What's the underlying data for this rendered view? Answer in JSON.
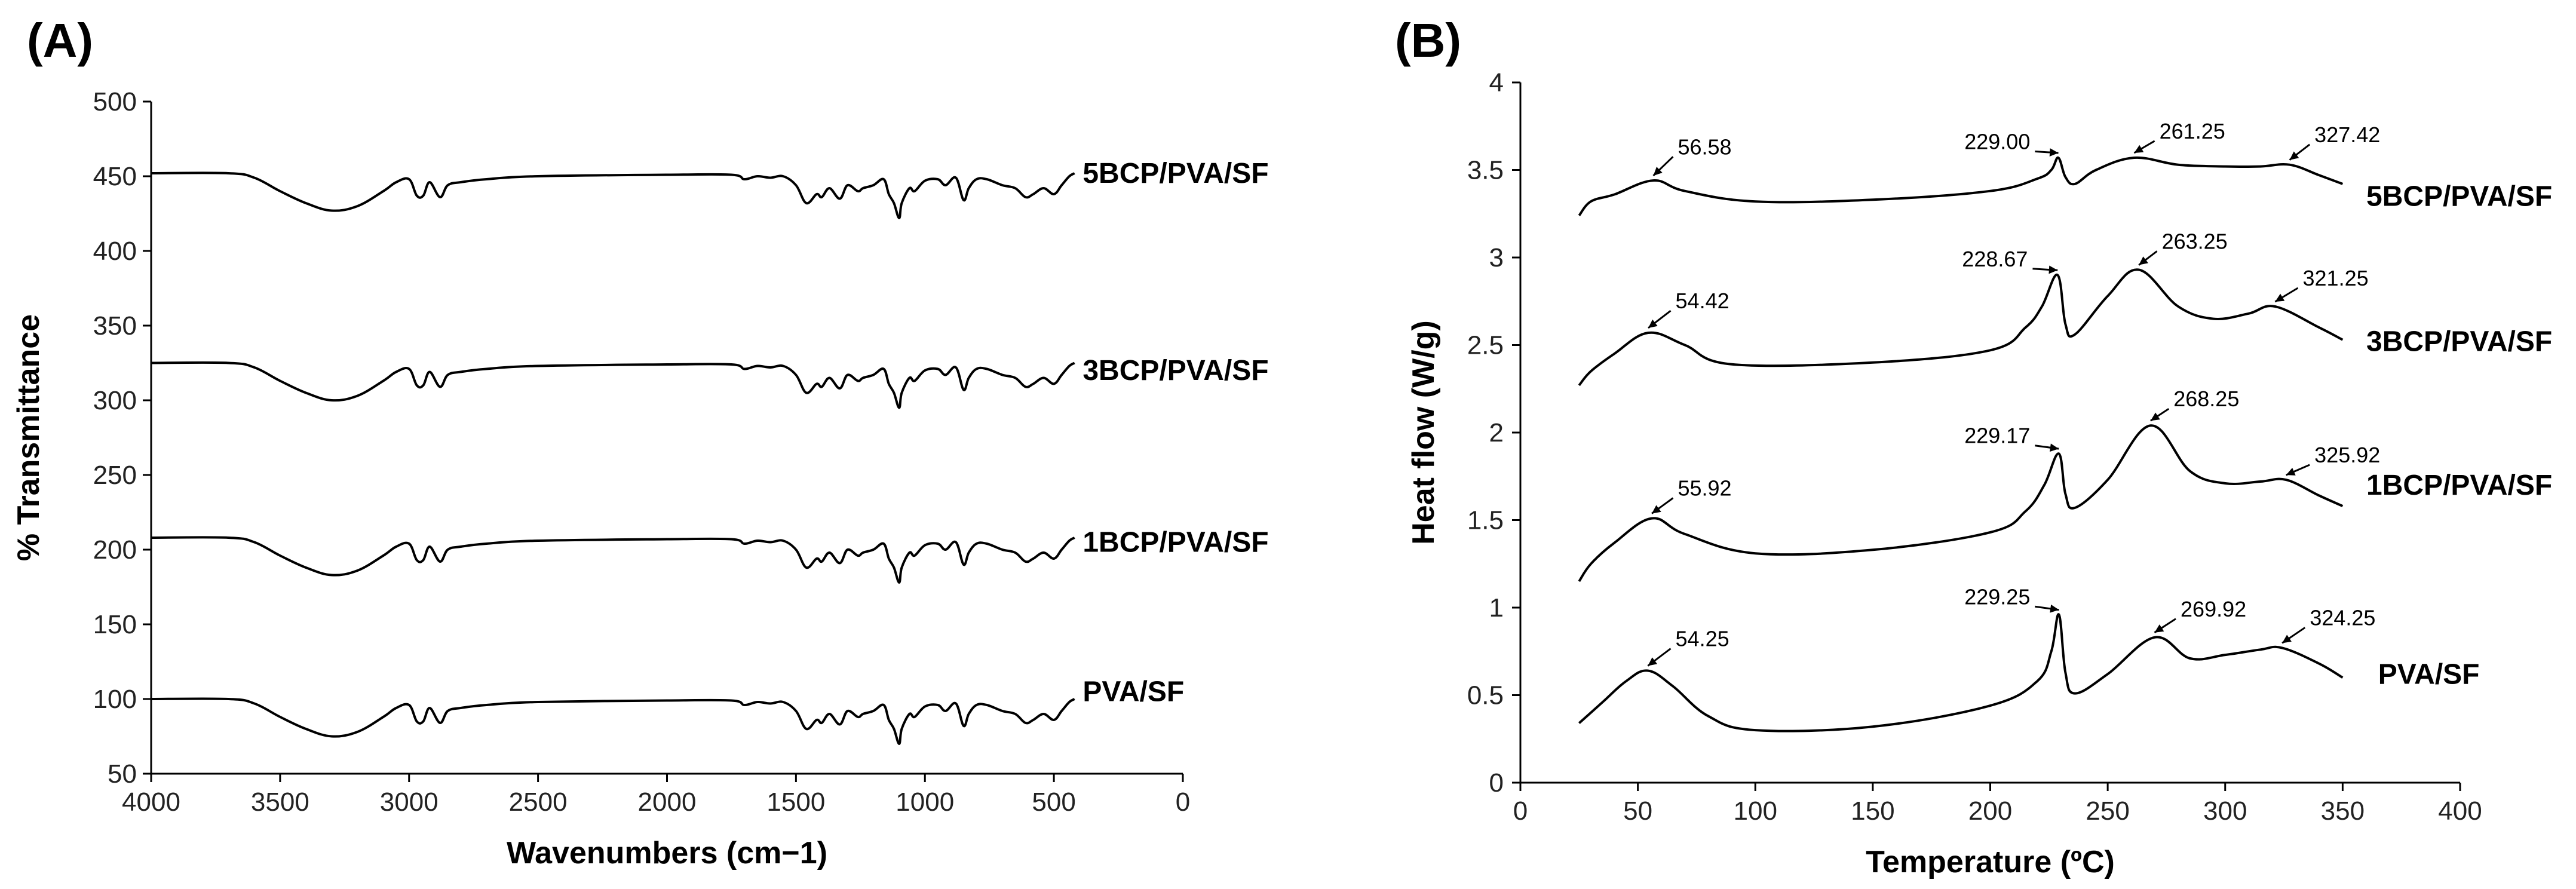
{
  "chart_data": [
    {
      "type": "line",
      "panel_label": "(A)",
      "xlabel": "Wavenumbers (cm−1)",
      "ylabel": "% Transmittance",
      "xlim": [
        4000,
        0
      ],
      "ylim": [
        50,
        500
      ],
      "xticks": [
        4000,
        3500,
        3000,
        2500,
        2000,
        1500,
        1000,
        500,
        0
      ],
      "yticks": [
        50,
        100,
        150,
        200,
        250,
        300,
        350,
        400,
        450,
        500
      ],
      "series": [
        {
          "name": "5BCP/PVA/SF",
          "offset": 452,
          "label_x": 430,
          "label_y": 452
        },
        {
          "name": "3BCP/PVA/SF",
          "offset": 325,
          "label_x": 430,
          "label_y": 320
        },
        {
          "name": "1BCP/PVA/SF",
          "offset": 208,
          "label_x": 430,
          "label_y": 205
        },
        {
          "name": "PVA/SF",
          "offset": 100,
          "label_x": 430,
          "label_y": 105
        }
      ],
      "spectrum_shape": {
        "x": [
          4000,
          3700,
          3600,
          3500,
          3400,
          3300,
          3200,
          3100,
          3050,
          3000,
          2970,
          2945,
          2920,
          2880,
          2850,
          2800,
          2700,
          2500,
          2000,
          1750,
          1700,
          1650,
          1600,
          1550,
          1500,
          1460,
          1420,
          1400,
          1370,
          1330,
          1300,
          1260,
          1240,
          1200,
          1160,
          1140,
          1120,
          1100,
          1090,
          1060,
          1040,
          1000,
          950,
          920,
          880,
          850,
          830,
          800,
          760,
          700,
          650,
          610,
          580,
          540,
          500,
          470,
          440,
          420
        ],
        "y": [
          0,
          0,
          -3,
          -12,
          -20,
          -25,
          -22,
          -12,
          -6,
          -4,
          -15,
          -15,
          -6,
          -16,
          -8,
          -6,
          -4,
          -2,
          -1,
          -1,
          -4,
          -2,
          -3,
          -2,
          -8,
          -20,
          -14,
          -16,
          -10,
          -17,
          -8,
          -12,
          -10,
          -8,
          -4,
          -14,
          -20,
          -30,
          -20,
          -10,
          -12,
          -5,
          -4,
          -8,
          -3,
          -18,
          -10,
          -4,
          -4,
          -8,
          -10,
          -16,
          -14,
          -10,
          -14,
          -8,
          -2,
          0
        ]
      }
    },
    {
      "type": "line",
      "panel_label": "(B)",
      "xlabel": "Temperature (ºC)",
      "ylabel": "Heat flow (W/g)",
      "xlim": [
        0,
        400
      ],
      "ylim": [
        0,
        4
      ],
      "xticks": [
        0,
        50,
        100,
        150,
        200,
        250,
        300,
        350,
        400
      ],
      "yticks": [
        0,
        0.5,
        1,
        1.5,
        2,
        2.5,
        3,
        3.5,
        4
      ],
      "series": [
        {
          "name": "5BCP/PVA/SF",
          "label_x": 355,
          "label_y": 3.35,
          "x": [
            25,
            30,
            40,
            56.58,
            70,
            100,
            150,
            200,
            220,
            226,
            229.0,
            232,
            236,
            245,
            261.25,
            280,
            300,
            315,
            327.42,
            340,
            350
          ],
          "y": [
            3.24,
            3.32,
            3.36,
            3.44,
            3.38,
            3.32,
            3.33,
            3.38,
            3.45,
            3.5,
            3.57,
            3.46,
            3.42,
            3.5,
            3.57,
            3.53,
            3.52,
            3.52,
            3.53,
            3.47,
            3.42
          ],
          "peaks": [
            {
              "x": 56.58,
              "y": 3.44,
              "label": "56.58",
              "lx": 67,
              "ly": 3.61,
              "side": "right"
            },
            {
              "x": 229.0,
              "y": 3.57,
              "label": "229.00",
              "lx": 217,
              "ly": 3.64,
              "side": "left"
            },
            {
              "x": 261.25,
              "y": 3.57,
              "label": "261.25",
              "lx": 272,
              "ly": 3.7,
              "side": "right"
            },
            {
              "x": 327.42,
              "y": 3.53,
              "label": "327.42",
              "lx": 338,
              "ly": 3.68,
              "side": "right"
            }
          ]
        },
        {
          "name": "3BCP/PVA/SF",
          "label_x": 355,
          "label_y": 2.52,
          "x": [
            25,
            30,
            40,
            54.42,
            70,
            90,
            150,
            200,
            215,
            222,
            228.67,
            232,
            236,
            250,
            263.25,
            280,
            295,
            310,
            321.25,
            340,
            350
          ],
          "y": [
            2.27,
            2.35,
            2.45,
            2.57,
            2.5,
            2.39,
            2.4,
            2.47,
            2.6,
            2.72,
            2.9,
            2.62,
            2.56,
            2.78,
            2.93,
            2.72,
            2.65,
            2.68,
            2.72,
            2.6,
            2.53
          ],
          "peaks": [
            {
              "x": 54.42,
              "y": 2.57,
              "label": "54.42",
              "lx": 66,
              "ly": 2.73,
              "side": "right"
            },
            {
              "x": 228.67,
              "y": 2.9,
              "label": "228.67",
              "lx": 216,
              "ly": 2.97,
              "side": "left"
            },
            {
              "x": 263.25,
              "y": 2.93,
              "label": "263.25",
              "lx": 273,
              "ly": 3.07,
              "side": "right"
            },
            {
              "x": 321.25,
              "y": 2.72,
              "label": "321.25",
              "lx": 333,
              "ly": 2.86,
              "side": "right"
            }
          ]
        },
        {
          "name": "1BCP/PVA/SF",
          "label_x": 355,
          "label_y": 1.7,
          "x": [
            25,
            30,
            40,
            55.92,
            70,
            100,
            150,
            200,
            215,
            223,
            229.17,
            232,
            236,
            250,
            268.25,
            285,
            300,
            315,
            325.92,
            340,
            350
          ],
          "y": [
            1.15,
            1.25,
            1.37,
            1.51,
            1.42,
            1.31,
            1.33,
            1.43,
            1.55,
            1.7,
            1.88,
            1.65,
            1.57,
            1.73,
            2.04,
            1.78,
            1.71,
            1.72,
            1.73,
            1.64,
            1.58
          ],
          "peaks": [
            {
              "x": 55.92,
              "y": 1.51,
              "label": "55.92",
              "lx": 67,
              "ly": 1.66,
              "side": "right"
            },
            {
              "x": 229.17,
              "y": 1.88,
              "label": "229.17",
              "lx": 217,
              "ly": 1.96,
              "side": "left"
            },
            {
              "x": 268.25,
              "y": 2.04,
              "label": "268.25",
              "lx": 278,
              "ly": 2.17,
              "side": "right"
            },
            {
              "x": 325.92,
              "y": 1.73,
              "label": "325.92",
              "lx": 338,
              "ly": 1.85,
              "side": "right"
            }
          ]
        },
        {
          "name": "PVA/SF",
          "label_x": 360,
          "label_y": 0.62,
          "x": [
            25,
            35,
            45,
            54.25,
            65,
            80,
            100,
            150,
            200,
            220,
            226,
            229.25,
            232,
            236,
            250,
            269.92,
            285,
            300,
            315,
            324.25,
            340,
            350
          ],
          "y": [
            0.34,
            0.46,
            0.58,
            0.64,
            0.55,
            0.38,
            0.3,
            0.32,
            0.44,
            0.58,
            0.75,
            0.96,
            0.63,
            0.51,
            0.62,
            0.83,
            0.71,
            0.73,
            0.76,
            0.77,
            0.68,
            0.6
          ],
          "peaks": [
            {
              "x": 54.25,
              "y": 0.64,
              "label": "54.25",
              "lx": 66,
              "ly": 0.8,
              "side": "right"
            },
            {
              "x": 229.25,
              "y": 0.96,
              "label": "229.25",
              "lx": 217,
              "ly": 1.04,
              "side": "left"
            },
            {
              "x": 269.92,
              "y": 0.83,
              "label": "269.92",
              "lx": 281,
              "ly": 0.97,
              "side": "right"
            },
            {
              "x": 324.25,
              "y": 0.77,
              "label": "324.25",
              "lx": 336,
              "ly": 0.92,
              "side": "right"
            }
          ]
        }
      ]
    }
  ]
}
